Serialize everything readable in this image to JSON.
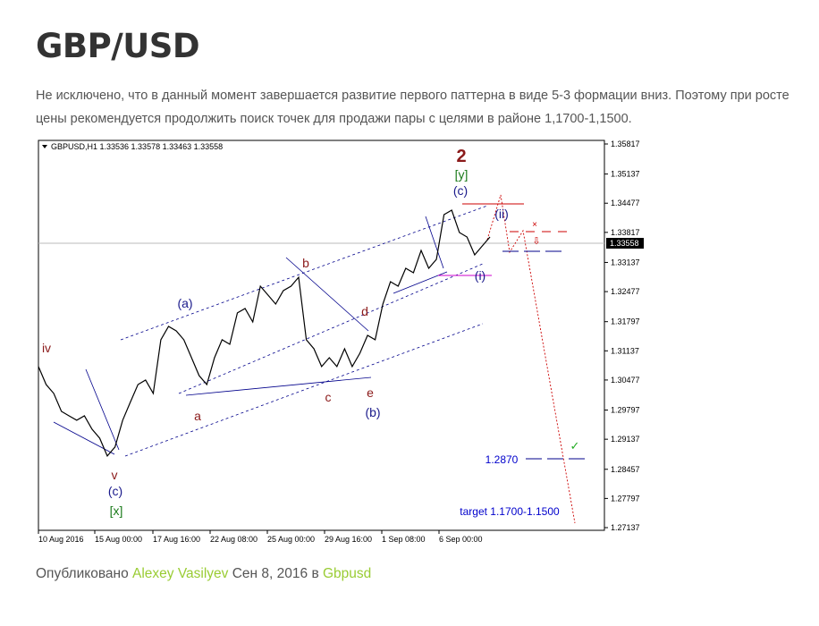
{
  "header": {
    "title": "GBP/USD"
  },
  "body": {
    "text": "Не исключено, что в данный момент завершается развитие первого паттерна в виде 5-3 формации вниз. Поэтому при росте цены рекомендуется продолжить поиск точек для продажи пары с целями в районе 1,1700-1,1500."
  },
  "chart": {
    "header": "GBPUSD,H1  1.33536 1.33578 1.33463 1.33558",
    "current_price": "1.33558",
    "ylim": [
      1.27137,
      1.35817
    ],
    "yticks": [
      1.35817,
      1.35137,
      1.34477,
      1.33817,
      1.33137,
      1.32477,
      1.31797,
      1.31137,
      1.30477,
      1.29797,
      1.29137,
      1.28457,
      1.27797,
      1.27137
    ],
    "xticks": [
      "10 Aug 2016",
      "15 Aug 00:00",
      "17 Aug 16:00",
      "22 Aug 08:00",
      "25 Aug 00:00",
      "29 Aug 16:00",
      "1 Sep 08:00",
      "6 Sep 00:00"
    ],
    "price": [
      1.3078,
      1.30375,
      1.30173,
      1.29768,
      1.29667,
      1.29566,
      1.29667,
      1.29364,
      1.29161,
      1.28757,
      1.28959,
      1.29566,
      1.29971,
      1.30375,
      1.30476,
      1.30173,
      1.31387,
      1.3169,
      1.31589,
      1.31387,
      1.30982,
      1.30577,
      1.30375,
      1.30982,
      1.31387,
      1.31285,
      1.31994,
      1.32095,
      1.31791,
      1.326,
      1.32398,
      1.32196,
      1.32499,
      1.326,
      1.32803,
      1.31387,
      1.31184,
      1.3078,
      1.30982,
      1.3078,
      1.31184,
      1.3078,
      1.31083,
      1.31488,
      1.31387,
      1.32196,
      1.32702,
      1.326,
      1.33005,
      1.32904,
      1.3341,
      1.33005,
      1.33207,
      1.34219,
      1.3432,
      1.33814,
      1.33713,
      1.33308,
      1.33511,
      1.33713
    ],
    "annotations": [
      "iv",
      "v",
      "(c)",
      "[x]",
      "a",
      "(a)",
      "b",
      "c",
      "d",
      "e",
      "(b)",
      "2",
      "[y]",
      "(c)",
      "(ii)",
      "(i)",
      "1.2870",
      "target  1.1700-1.1500"
    ]
  },
  "footer": {
    "prefix": "Опубликовано",
    "author": "Alexey Vasilyev",
    "date": "Сен 8, 2016",
    "in": "в",
    "category": "Gbpusd"
  }
}
